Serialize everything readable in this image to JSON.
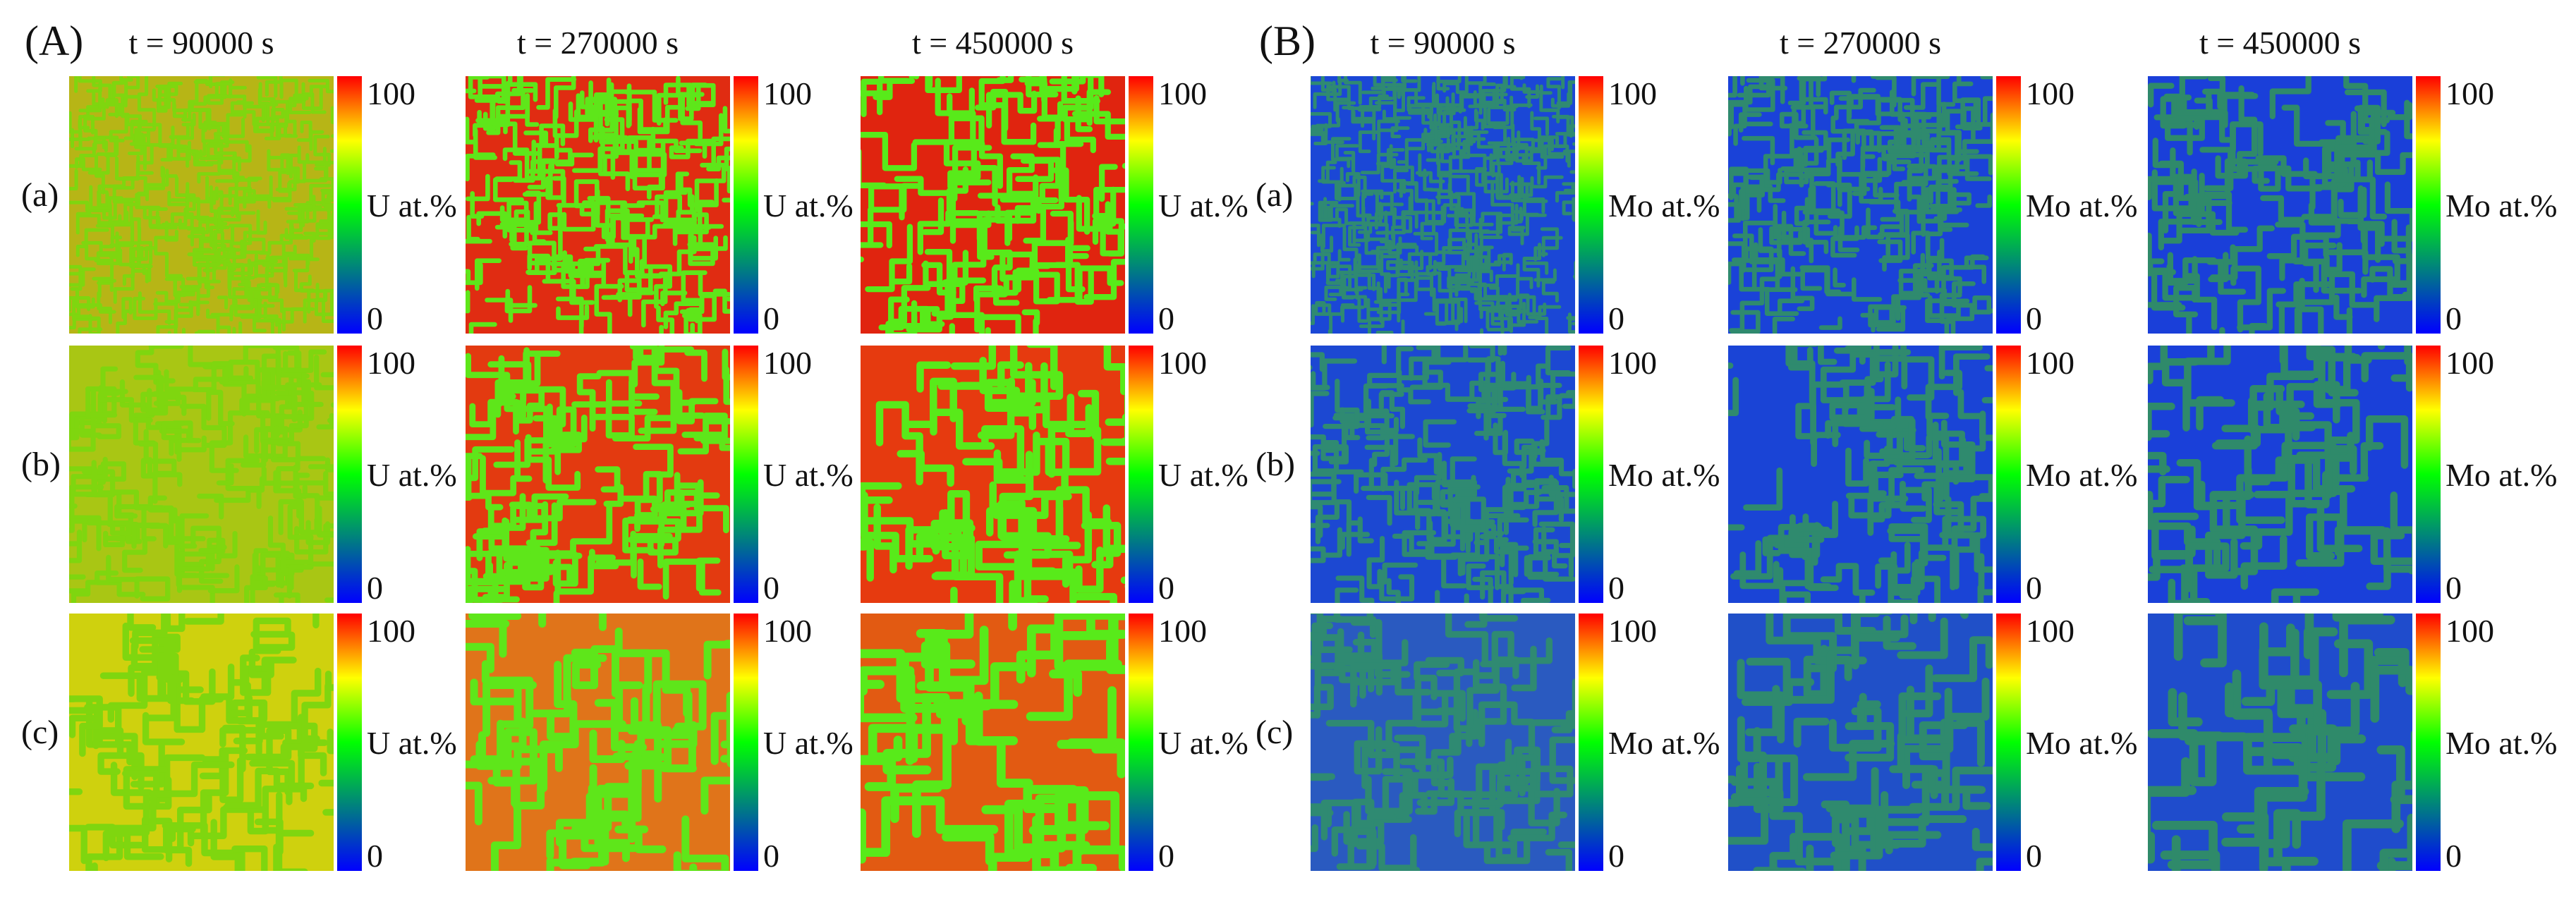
{
  "panels": [
    {
      "label": "(A)",
      "element": "U",
      "colorbar_unit": "U at.%",
      "times": [
        "t = 90000 s",
        "t = 270000 s",
        "t = 450000 s"
      ],
      "rows": [
        "(a)",
        "(b)",
        "(c)"
      ],
      "colorbar": {
        "max": "100",
        "min": "0"
      },
      "colormap": [
        "#0000ff",
        "#00ff00",
        "#ffff00",
        "#ff0000"
      ],
      "map_colors": [
        [
          "#b7b516",
          "#e02c12",
          "#e0240f"
        ],
        [
          "#a9c614",
          "#e33a10",
          "#e63a0f"
        ],
        [
          "#cfd10e",
          "#e0741a",
          "#e25a12"
        ]
      ],
      "pattern_colors": [
        "#7fd60f",
        "#5ee61a",
        "#58ea1a"
      ]
    },
    {
      "label": "(B)",
      "element": "Mo",
      "colorbar_unit": "Mo at.%",
      "times": [
        "t = 90000 s",
        "t = 270000 s",
        "t = 450000 s"
      ],
      "rows": [
        "(a)",
        "(b)",
        "(c)"
      ],
      "colorbar": {
        "max": "100",
        "min": "0"
      },
      "colormap": [
        "#0000ff",
        "#00ff00",
        "#ffff00",
        "#ff0000"
      ],
      "map_colors": [
        [
          "#1b47d6",
          "#1a42d8",
          "#1a3fd9"
        ],
        [
          "#1c48d2",
          "#1a44d6",
          "#1a40d9"
        ],
        [
          "#2a5ac0",
          "#2050c8",
          "#1f4ccc"
        ]
      ],
      "pattern_colors": [
        "#2f8a72",
        "#2f8a6e",
        "#2f8a6a"
      ]
    }
  ]
}
